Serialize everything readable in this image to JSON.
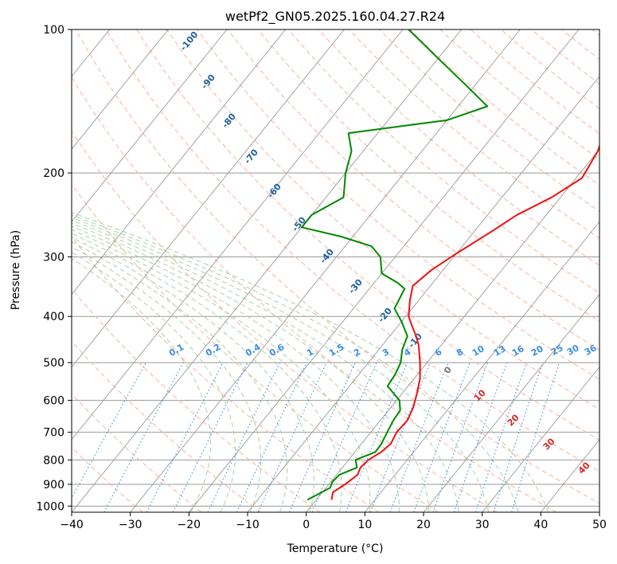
{
  "chart_data": {
    "type": "skew-t",
    "title": "wetPf2_GN05.2025.160.04.27.R24",
    "xlabel": "Temperature (°C)",
    "ylabel": "Pressure (hPa)",
    "xlim": [
      -40,
      50
    ],
    "ylim": [
      1030,
      100
    ],
    "y_scale": "log",
    "x_ticks": [
      "−40",
      "−30",
      "−20",
      "−10",
      "0",
      "10",
      "20",
      "30",
      "40",
      "50"
    ],
    "y_ticks": [
      {
        "p": 100,
        "label": "100"
      },
      {
        "p": 200,
        "label": "200"
      },
      {
        "p": 300,
        "label": "300"
      },
      {
        "p": 400,
        "label": "400"
      },
      {
        "p": 500,
        "label": "500"
      },
      {
        "p": 600,
        "label": "600"
      },
      {
        "p": 700,
        "label": "700"
      },
      {
        "p": 800,
        "label": "800"
      },
      {
        "p": 900,
        "label": "900"
      },
      {
        "p": 1000,
        "label": "1000"
      }
    ],
    "grid": true,
    "colors": {
      "temperature": "#ee1111",
      "dewpoint": "#008800",
      "isotherm": "#999999",
      "dry_adiabat": "#f8b9a3",
      "moist_adiabat": "#a6d3a6",
      "mixing_ratio": "#3a8ee6",
      "hgz": "#1f5f9a",
      "theta_label": "#d62828"
    },
    "temperature_profile": [
      {
        "p": 970,
        "t": 2.6
      },
      {
        "p": 935,
        "t": 1.8
      },
      {
        "p": 900,
        "t": 2.8
      },
      {
        "p": 860,
        "t": 3.6
      },
      {
        "p": 830,
        "t": 3.1
      },
      {
        "p": 800,
        "t": 3.4
      },
      {
        "p": 770,
        "t": 4.5
      },
      {
        "p": 740,
        "t": 5.0
      },
      {
        "p": 700,
        "t": 4.4
      },
      {
        "p": 660,
        "t": 4.6
      },
      {
        "p": 620,
        "t": 3.8
      },
      {
        "p": 580,
        "t": 2.5
      },
      {
        "p": 540,
        "t": 1.0
      },
      {
        "p": 500,
        "t": -1.2
      },
      {
        "p": 460,
        "t": -3.8
      },
      {
        "p": 440,
        "t": -5.5
      },
      {
        "p": 420,
        "t": -7.5
      },
      {
        "p": 400,
        "t": -9.5
      },
      {
        "p": 370,
        "t": -11.5
      },
      {
        "p": 345,
        "t": -13.0
      },
      {
        "p": 320,
        "t": -12.0
      },
      {
        "p": 295,
        "t": -10.0
      },
      {
        "p": 265,
        "t": -7.0
      },
      {
        "p": 245,
        "t": -5.0
      },
      {
        "p": 225,
        "t": -1.5
      },
      {
        "p": 205,
        "t": 1.0
      },
      {
        "p": 180,
        "t": 0.0
      },
      {
        "p": 155,
        "t": -2.5
      },
      {
        "p": 130,
        "t": -5.5
      },
      {
        "p": 115,
        "t": -7.0
      },
      {
        "p": 100,
        "t": -10.5
      }
    ],
    "dewpoint_profile": [
      {
        "p": 970,
        "t": -1.5
      },
      {
        "p": 945,
        "t": -0.5
      },
      {
        "p": 915,
        "t": 0.7
      },
      {
        "p": 890,
        "t": 0.3
      },
      {
        "p": 860,
        "t": 0.5
      },
      {
        "p": 830,
        "t": 2.5
      },
      {
        "p": 800,
        "t": 1.2
      },
      {
        "p": 770,
        "t": 3.5
      },
      {
        "p": 740,
        "t": 3.4
      },
      {
        "p": 700,
        "t": 2.8
      },
      {
        "p": 660,
        "t": 2.2
      },
      {
        "p": 630,
        "t": 2.0
      },
      {
        "p": 600,
        "t": 0.5
      },
      {
        "p": 560,
        "t": -3.5
      },
      {
        "p": 530,
        "t": -3.8
      },
      {
        "p": 500,
        "t": -4.5
      },
      {
        "p": 470,
        "t": -6.0
      },
      {
        "p": 440,
        "t": -7.0
      },
      {
        "p": 410,
        "t": -10.0
      },
      {
        "p": 385,
        "t": -13.0
      },
      {
        "p": 350,
        "t": -14.0
      },
      {
        "p": 340,
        "t": -16.0
      },
      {
        "p": 325,
        "t": -20.0
      },
      {
        "p": 300,
        "t": -22.5
      },
      {
        "p": 285,
        "t": -25.5
      },
      {
        "p": 272,
        "t": -32.0
      },
      {
        "p": 260,
        "t": -40.0
      },
      {
        "p": 245,
        "t": -40.0
      },
      {
        "p": 225,
        "t": -37.0
      },
      {
        "p": 200,
        "t": -40.0
      },
      {
        "p": 180,
        "t": -42.0
      },
      {
        "p": 165,
        "t": -45.0
      },
      {
        "p": 155,
        "t": -30.0
      },
      {
        "p": 145,
        "t": -25.0
      },
      {
        "p": 130,
        "t": -32.0
      },
      {
        "p": 115,
        "t": -40.0
      },
      {
        "p": 100,
        "t": -49.0
      }
    ],
    "isotherm_labels": [
      "-100",
      "-90",
      "-80",
      "-70",
      "-60",
      "-50",
      "-40",
      "-30",
      "-20",
      "-10",
      "0"
    ],
    "mixing_ratio_labels": [
      "0.1",
      "0.2",
      "0.4",
      "0.6",
      "1",
      "1.5",
      "2",
      "3",
      "4",
      "6",
      "8",
      "10",
      "13",
      "16",
      "20",
      "25",
      "30",
      "36"
    ],
    "theta_e_labels": [
      "10",
      "20",
      "30",
      "40"
    ]
  }
}
